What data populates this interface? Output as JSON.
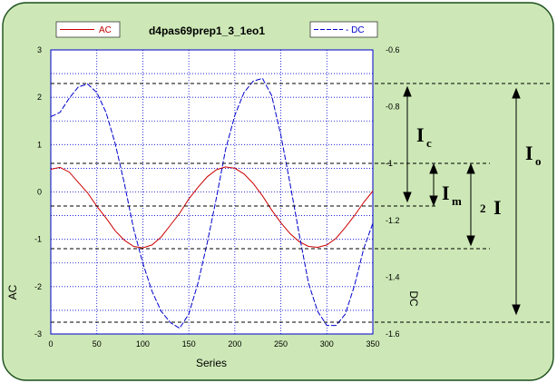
{
  "chart_data": {
    "type": "line",
    "title": "d4pas69prep1_3_1eo1",
    "xlabel": "Series",
    "ylabel_left": "AC",
    "ylabel_right": "DC",
    "xlim": [
      0,
      350
    ],
    "ylim_left": [
      -3,
      3
    ],
    "ylim_right": [
      -1.6,
      -0.6
    ],
    "x_ticks": [
      "0",
      "50",
      "100",
      "150",
      "200",
      "250",
      "300",
      "350"
    ],
    "y_left_ticks": [
      "3",
      "2",
      "1",
      "0",
      "-1",
      "-2",
      "-3"
    ],
    "y_right_ticks": [
      "-0.6",
      "-0.8",
      "-1",
      "-1.2",
      "-1.4",
      "-1.6"
    ],
    "grid": true,
    "legend": {
      "placement": "top",
      "entries": [
        {
          "label": "AC",
          "color": "#cc0000"
        },
        {
          "label": "- DC",
          "color": "#0000cc"
        }
      ]
    },
    "series": [
      {
        "name": "AC",
        "axis": "left",
        "color": "#cc0000",
        "x": [
          0,
          10,
          20,
          30,
          40,
          50,
          60,
          70,
          80,
          90,
          100,
          110,
          120,
          130,
          140,
          150,
          160,
          170,
          180,
          190,
          200,
          210,
          220,
          230,
          240,
          250,
          260,
          270,
          280,
          290,
          300,
          310,
          320,
          330,
          340,
          350
        ],
        "y": [
          0.48,
          0.52,
          0.42,
          0.2,
          -0.02,
          -0.3,
          -0.55,
          -0.82,
          -1.02,
          -1.15,
          -1.18,
          -1.12,
          -0.95,
          -0.7,
          -0.45,
          -0.15,
          0.1,
          0.32,
          0.47,
          0.53,
          0.5,
          0.38,
          0.18,
          -0.08,
          -0.38,
          -0.65,
          -0.88,
          -1.05,
          -1.15,
          -1.17,
          -1.12,
          -0.98,
          -0.75,
          -0.5,
          -0.22,
          0.02
        ]
      },
      {
        "name": "- DC",
        "axis": "right",
        "color": "#0000cc",
        "x": [
          0,
          10,
          20,
          30,
          40,
          50,
          60,
          70,
          80,
          90,
          100,
          110,
          120,
          130,
          140,
          150,
          160,
          170,
          180,
          190,
          200,
          210,
          220,
          230,
          240,
          250,
          260,
          270,
          280,
          290,
          300,
          310,
          320,
          330,
          340,
          350
        ],
        "y": [
          -0.835,
          -0.82,
          -0.77,
          -0.73,
          -0.72,
          -0.75,
          -0.82,
          -0.93,
          -1.07,
          -1.23,
          -1.35,
          -1.45,
          -1.52,
          -1.56,
          -1.58,
          -1.53,
          -1.42,
          -1.28,
          -1.12,
          -0.95,
          -0.83,
          -0.75,
          -0.71,
          -0.7,
          -0.76,
          -0.9,
          -1.07,
          -1.25,
          -1.42,
          -1.52,
          -1.57,
          -1.57,
          -1.53,
          -1.43,
          -1.3,
          -1.21
        ]
      }
    ],
    "annotations": {
      "Ic": {
        "main": "I",
        "sub": "c"
      },
      "Im": {
        "main": "I",
        "sub": "m"
      },
      "twoI": {
        "main": "I",
        "sub": "2"
      },
      "Io": {
        "main": "I",
        "sub": "o"
      }
    }
  }
}
